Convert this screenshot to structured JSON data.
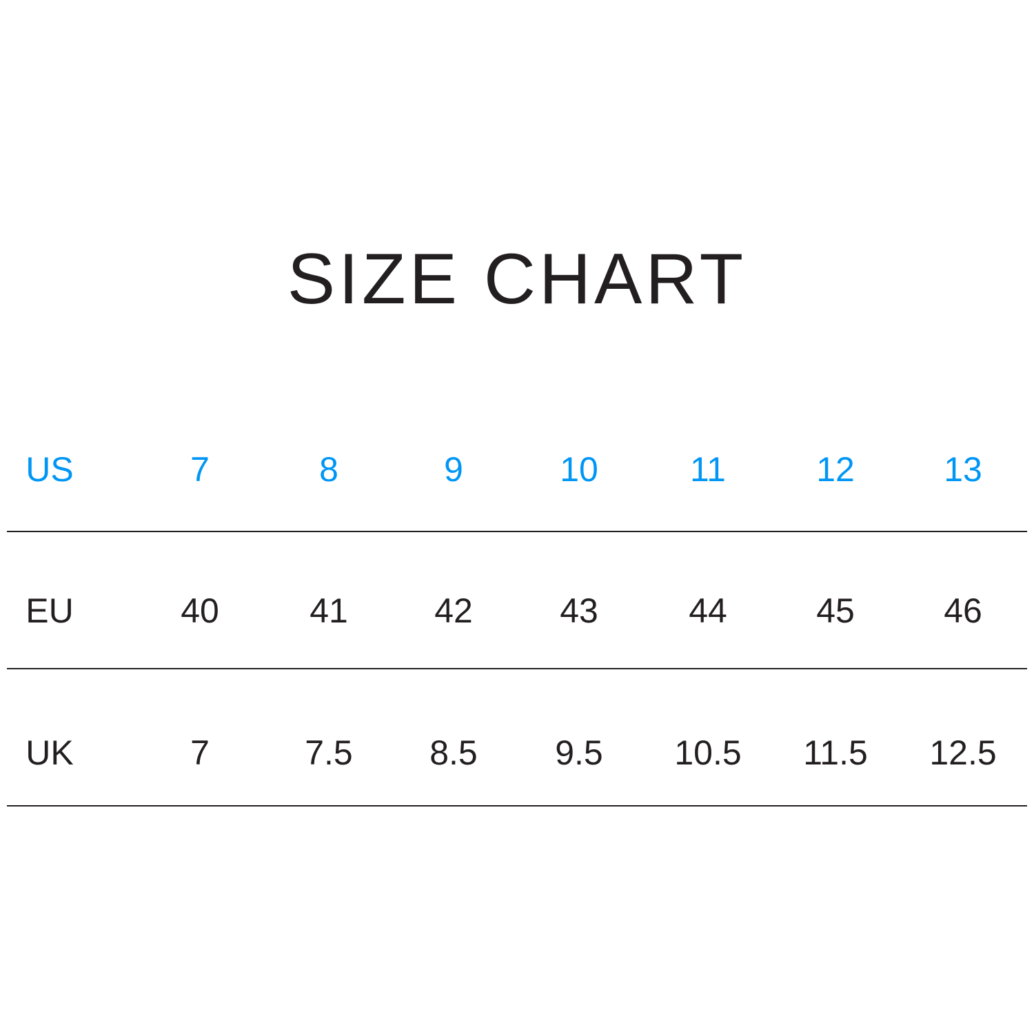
{
  "title": "SIZE CHART",
  "colors": {
    "header_row": "#0096f5",
    "text": "#231f20"
  },
  "rows": [
    {
      "label": "US",
      "values": [
        "7",
        "8",
        "9",
        "10",
        "11",
        "12",
        "13"
      ]
    },
    {
      "label": "EU",
      "values": [
        "40",
        "41",
        "42",
        "43",
        "44",
        "45",
        "46"
      ]
    },
    {
      "label": "UK",
      "values": [
        "7",
        "7.5",
        "8.5",
        "9.5",
        "10.5",
        "11.5",
        "12.5"
      ]
    }
  ]
}
